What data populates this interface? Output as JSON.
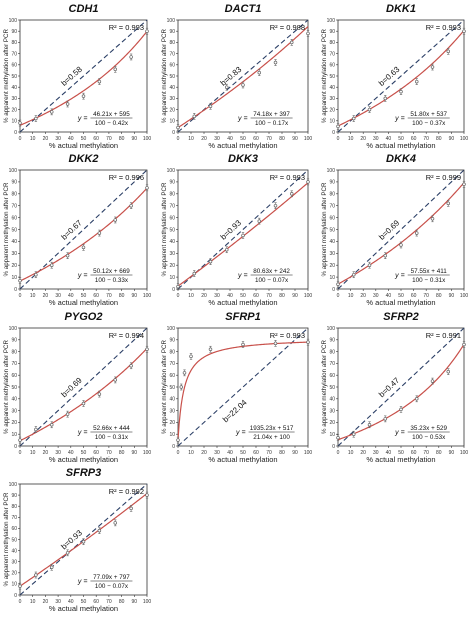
{
  "axes": {
    "xlabel": "% actual methylation",
    "ylabel": "% apparent methylation after PCR",
    "ticks": [
      "0",
      "10",
      "20",
      "30",
      "40",
      "50",
      "60",
      "70",
      "80",
      "90",
      "100"
    ]
  },
  "colors": {
    "fit_line": "#c8504a",
    "ideal_line": "#2b3f66",
    "marker": "#666666",
    "axis": "#333333"
  },
  "chart_data": [
    {
      "type": "scatter",
      "title": "CDH1",
      "r2": "R² = 0.993",
      "b": "b=0.58",
      "formula_prefix": "y =",
      "numerator": "46.21x + 595",
      "denominator": "100 − 0.42x",
      "fit": {
        "a": 46.21,
        "c": 595,
        "d": 100,
        "e": -0.42
      },
      "x": [
        0,
        12.5,
        25,
        37.5,
        50,
        62.5,
        75,
        87.5,
        100
      ],
      "y": [
        8,
        12,
        18,
        25,
        32,
        45,
        56,
        67,
        90
      ],
      "xlim": [
        0,
        100
      ],
      "ylim": [
        0,
        100
      ],
      "grid": false
    },
    {
      "type": "scatter",
      "title": "DACT1",
      "r2": "R² = 0.988",
      "b": "b=0.83",
      "formula_prefix": "y =",
      "numerator": "74.18x + 397",
      "denominator": "100 − 0.17x",
      "fit": {
        "a": 74.18,
        "c": 397,
        "d": 100,
        "e": -0.17
      },
      "x": [
        0,
        12.5,
        25,
        37.5,
        50,
        62.5,
        75,
        87.5,
        100
      ],
      "y": [
        4,
        14,
        23,
        40,
        42,
        53,
        62,
        80,
        88
      ],
      "xlim": [
        0,
        100
      ],
      "ylim": [
        0,
        100
      ],
      "grid": false
    },
    {
      "type": "scatter",
      "title": "DKK1",
      "r2": "R² = 0.993",
      "b": "b=0.63",
      "formula_prefix": "y =",
      "numerator": "51.80x + 537",
      "denominator": "100 − 0.37x",
      "fit": {
        "a": 51.8,
        "c": 537,
        "d": 100,
        "e": -0.37
      },
      "x": [
        0,
        12.5,
        25,
        37.5,
        50,
        62.5,
        75,
        87.5,
        100
      ],
      "y": [
        5,
        12,
        20,
        30,
        36,
        45,
        58,
        72,
        90
      ],
      "xlim": [
        0,
        100
      ],
      "ylim": [
        0,
        100
      ],
      "grid": false
    },
    {
      "type": "scatter",
      "title": "DKK2",
      "r2": "R² = 0.996",
      "b": "b=0.67",
      "formula_prefix": "y =",
      "numerator": "50.12x + 669",
      "denominator": "100 − 0.33x",
      "fit": {
        "a": 50.12,
        "c": 669,
        "d": 100,
        "e": -0.33
      },
      "x": [
        0,
        12.5,
        25,
        37.5,
        50,
        62.5,
        75,
        87.5,
        100
      ],
      "y": [
        7,
        12,
        20,
        28,
        35,
        47,
        58,
        70,
        85
      ],
      "xlim": [
        0,
        100
      ],
      "ylim": [
        0,
        100
      ],
      "grid": false
    },
    {
      "type": "scatter",
      "title": "DKK3",
      "r2": "R² = 0.993",
      "b": "b=0.93",
      "formula_prefix": "y =",
      "numerator": "80.63x + 242",
      "denominator": "100 − 0.07x",
      "fit": {
        "a": 80.63,
        "c": 242,
        "d": 100,
        "e": -0.07
      },
      "x": [
        0,
        12.5,
        25,
        37.5,
        50,
        62.5,
        75,
        87.5,
        100
      ],
      "y": [
        2,
        13,
        23,
        33,
        45,
        57,
        70,
        80,
        90
      ],
      "xlim": [
        0,
        100
      ],
      "ylim": [
        0,
        100
      ],
      "grid": false
    },
    {
      "type": "scatter",
      "title": "DKK4",
      "r2": "R² = 0.999",
      "b": "b=0.69",
      "formula_prefix": "y =",
      "numerator": "57.55x + 411",
      "denominator": "100 − 0.31x",
      "fit": {
        "a": 57.55,
        "c": 411,
        "d": 100,
        "e": -0.31
      },
      "x": [
        0,
        12.5,
        25,
        37.5,
        50,
        62.5,
        75,
        87.5,
        100
      ],
      "y": [
        4,
        12,
        20,
        28,
        37,
        47,
        59,
        72,
        88
      ],
      "xlim": [
        0,
        100
      ],
      "ylim": [
        0,
        100
      ],
      "grid": false
    },
    {
      "type": "scatter",
      "title": "PYGO2",
      "r2": "R² = 0.994",
      "b": "b=0.69",
      "formula_prefix": "y =",
      "numerator": "52.66x + 444",
      "denominator": "100 − 0.31x",
      "fit": {
        "a": 52.66,
        "c": 444,
        "d": 100,
        "e": -0.31
      },
      "x": [
        0,
        12.5,
        25,
        37.5,
        50,
        62.5,
        75,
        87.5,
        100
      ],
      "y": [
        5,
        14,
        18,
        27,
        36,
        44,
        56,
        68,
        82
      ],
      "xlim": [
        0,
        100
      ],
      "ylim": [
        0,
        100
      ],
      "grid": false
    },
    {
      "type": "scatter",
      "title": "SFRP1",
      "r2": "R² = 0.993",
      "b": "b=22.04",
      "formula_prefix": "y =",
      "numerator": "1935.23x + 517",
      "denominator": "21.04x + 100",
      "fit": {
        "a": 1935.23,
        "c": 517,
        "d": 100,
        "e": 21.04
      },
      "x": [
        0,
        2.5,
        5,
        10,
        25,
        50,
        75,
        100
      ],
      "y": [
        5,
        50,
        62,
        76,
        82,
        86,
        87,
        88
      ],
      "xlim": [
        0,
        100
      ],
      "ylim": [
        0,
        100
      ],
      "grid": false
    },
    {
      "type": "scatter",
      "title": "SFRP2",
      "r2": "R² = 0.991",
      "b": "b=0.47",
      "formula_prefix": "y =",
      "numerator": "35.23x + 529",
      "denominator": "100 − 0.53x",
      "fit": {
        "a": 35.23,
        "c": 529,
        "d": 100,
        "e": -0.53
      },
      "x": [
        0,
        12.5,
        25,
        37.5,
        50,
        62.5,
        75,
        87.5,
        100
      ],
      "y": [
        7,
        10,
        18,
        23,
        31,
        40,
        55,
        63,
        86
      ],
      "xlim": [
        0,
        100
      ],
      "ylim": [
        0,
        100
      ],
      "grid": false
    },
    {
      "type": "scatter",
      "title": "SFRP3",
      "r2": "R² = 0.992",
      "b": "b=0.93",
      "formula_prefix": "y =",
      "numerator": "77.09x + 797",
      "denominator": "100 − 0.07x",
      "fit": {
        "a": 77.09,
        "c": 797,
        "d": 100,
        "e": -0.07
      },
      "x": [
        0,
        12.5,
        25,
        37.5,
        50,
        62.5,
        75,
        87.5,
        100
      ],
      "y": [
        8,
        18,
        25,
        38,
        48,
        58,
        65,
        78,
        90
      ],
      "xlim": [
        0,
        100
      ],
      "ylim": [
        0,
        100
      ],
      "grid": false
    }
  ]
}
